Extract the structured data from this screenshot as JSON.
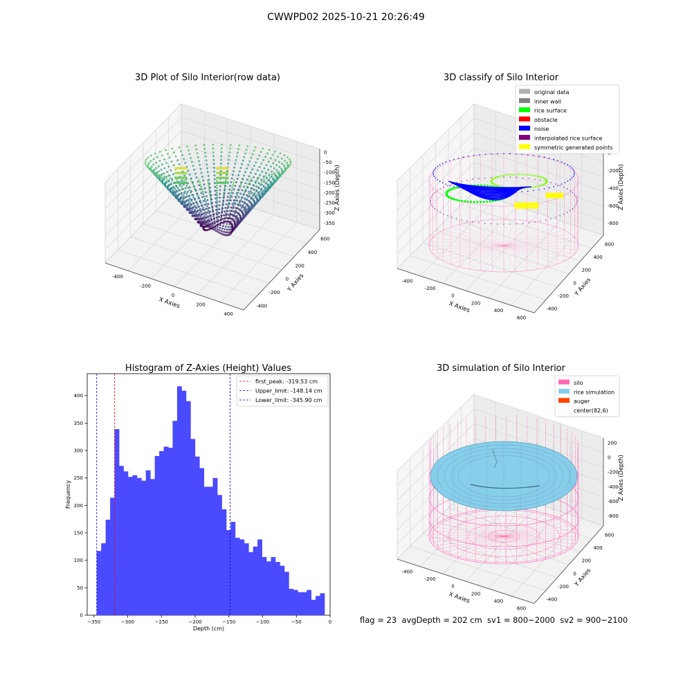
{
  "figure": {
    "suptitle": "CWWPD02 2025-10-21 20:26:49",
    "footer": "flag = 23  avgDepth = 202 cm  sv1 = 800~2000  sv2 = 900~2100"
  },
  "chart_data": [
    {
      "type": "scatter",
      "projection": "3d",
      "title": "3D Plot of Silo Interior(row data)",
      "xlabel": "X Axies",
      "ylabel": "Y Axies",
      "zlabel": "Z Axies (Depth)",
      "x_ticks": [
        "-400",
        "-200",
        "0",
        "200",
        "400"
      ],
      "y_ticks": [
        "-400",
        "-200",
        "0",
        "200",
        "400",
        "600"
      ],
      "z_ticks": [
        "0",
        "-50",
        "-100",
        "-150",
        "-200",
        "-250",
        "-300",
        "-350"
      ],
      "colormap": "viridis",
      "grid": true
    },
    {
      "type": "scatter",
      "projection": "3d",
      "title": "3D classify of Silo Interior",
      "x_ticks": [
        "-400",
        "-200",
        "0",
        "200",
        "400",
        "600"
      ],
      "y_ticks": [
        "-400",
        "-200",
        "0",
        "200",
        "400",
        "600"
      ],
      "z_ticks": [
        "0",
        "-200",
        "-400",
        "-600",
        "-800"
      ],
      "xlabel": "X Axies",
      "ylabel": "Y Axies",
      "zlabel": "Z Axies (Depth)",
      "legend": {
        "placement": "top-right",
        "entries": [
          {
            "label": "original data",
            "color": "#b0b0b0"
          },
          {
            "label": "inner wall",
            "color": "#808080"
          },
          {
            "label": "rice surface",
            "color": "#00ff00"
          },
          {
            "label": "obstacle",
            "color": "#ff0000"
          },
          {
            "label": "noise",
            "color": "#0000ff"
          },
          {
            "label": "interpolated rice surface",
            "color": "#800080"
          },
          {
            "label": "symmetric generated points",
            "color": "#ffff00"
          }
        ]
      },
      "grid": true
    },
    {
      "type": "bar",
      "title": "Histogram of Z-Axies (Height) Values",
      "xlabel": "Depth (cm)",
      "ylabel": "Frequency",
      "xlim": [
        -360,
        0
      ],
      "ylim": [
        0,
        440
      ],
      "x_ticks": [
        -350,
        -300,
        -250,
        -200,
        -150,
        -100,
        -50,
        0
      ],
      "y_ticks": [
        0,
        50,
        100,
        150,
        200,
        250,
        300,
        350,
        400
      ],
      "bin_start": -345.9,
      "bin_width": 6.62,
      "values": [
        117,
        131,
        174,
        214,
        339,
        272,
        262,
        252,
        255,
        250,
        245,
        264,
        248,
        290,
        299,
        307,
        305,
        354,
        417,
        409,
        390,
        321,
        289,
        268,
        234,
        234,
        250,
        219,
        193,
        155,
        170,
        141,
        138,
        131,
        115,
        125,
        138,
        106,
        98,
        106,
        97,
        90,
        79,
        48,
        46,
        42,
        42,
        46,
        28,
        35,
        40
      ],
      "bar_color": "#4a4aff",
      "vlines": [
        {
          "label": "first_peak: -319.53 cm",
          "x": -319.53,
          "color": "#ff0000"
        },
        {
          "label": "Upper_limit: -148.14 cm",
          "x": -148.14,
          "color": "#0000cc"
        },
        {
          "label": "Lower_limit: -345.90 cm",
          "x": -345.9,
          "color": "#0000cc"
        }
      ],
      "legend": {
        "placement": "top-right"
      }
    },
    {
      "type": "surface",
      "projection": "3d",
      "title": "3D simulation of Silo Interior",
      "xlabel": "X Axies",
      "ylabel": "Y Axies",
      "zlabel": "Z Axies (Depth)",
      "x_ticks": [
        "-400",
        "-200",
        "0",
        "200",
        "400",
        "600"
      ],
      "y_ticks": [
        "-400",
        "-200",
        "0",
        "200",
        "400",
        "600"
      ],
      "z_ticks": [
        "200",
        "0",
        "-200",
        "-400",
        "-600",
        "-800"
      ],
      "legend": {
        "placement": "top-right",
        "entries": [
          {
            "label": "silo",
            "color": "#ff69b4"
          },
          {
            "label": "rice simulation",
            "color": "#87ceeb"
          },
          {
            "label": "auger",
            "color": "#ff4500"
          },
          {
            "label": "center(82,6)",
            "color": "#ffffff"
          }
        ]
      },
      "grid": true
    }
  ]
}
